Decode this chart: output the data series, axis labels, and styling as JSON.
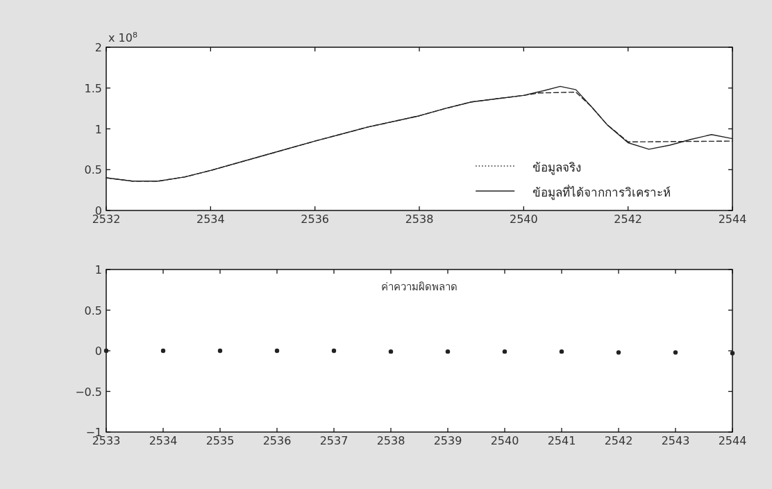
{
  "chart_data": [
    {
      "type": "line",
      "annotations": [
        "x 10$^{8}$"
      ],
      "legend": "bottom right",
      "xlim": [
        2532,
        2544
      ],
      "xticks": [
        2532,
        2534,
        2536,
        2538,
        2540,
        2542,
        2544
      ],
      "ylim": [
        0,
        2
      ],
      "yticks": [
        0,
        0.5,
        1,
        1.5,
        2
      ],
      "series": [
        {
          "name": "ข้อมูลจริง",
          "color": "#222222",
          "line_style": "dashed",
          "x": [
            2532,
            2532.5,
            2533,
            2533.5,
            2534,
            2535,
            2536,
            2537,
            2538,
            2538.5,
            2539,
            2539.5,
            2540,
            2540.3,
            2541,
            2541.3,
            2541.6,
            2542,
            2544
          ],
          "values": [
            0.4,
            0.36,
            0.36,
            0.41,
            0.49,
            0.67,
            0.85,
            1.02,
            1.16,
            1.25,
            1.33,
            1.37,
            1.41,
            1.44,
            1.45,
            1.27,
            1.05,
            0.84,
            0.85
          ]
        },
        {
          "name": "ข้อมูลที่ได้จากการวิเคราะห์",
          "color": "#222222",
          "line_style": "solid",
          "x": [
            2532,
            2532.5,
            2533,
            2533.5,
            2534,
            2535,
            2536,
            2537,
            2538,
            2538.5,
            2539,
            2539.5,
            2540,
            2540.4,
            2540.7,
            2541,
            2541.3,
            2541.6,
            2542,
            2542.4,
            2542.8,
            2543.2,
            2543.6,
            2544
          ],
          "values": [
            0.4,
            0.36,
            0.36,
            0.41,
            0.49,
            0.67,
            0.85,
            1.02,
            1.16,
            1.25,
            1.33,
            1.37,
            1.41,
            1.47,
            1.52,
            1.48,
            1.27,
            1.05,
            0.83,
            0.75,
            0.8,
            0.87,
            0.93,
            0.88
          ]
        }
      ]
    },
    {
      "type": "scatter",
      "annotations": [
        "ค่าความผิดพลาด"
      ],
      "marker": "circle",
      "xlim": [
        2533,
        2544
      ],
      "xticks": [
        2533,
        2534,
        2535,
        2536,
        2537,
        2538,
        2539,
        2540,
        2541,
        2542,
        2543,
        2544
      ],
      "ylim": [
        -1,
        1
      ],
      "yticks": [
        -1,
        -0.5,
        0,
        0.5,
        1
      ],
      "series": [
        {
          "color": "#222222",
          "x": [
            2533,
            2534,
            2535,
            2536,
            2537,
            2538,
            2539,
            2540,
            2541,
            2542,
            2543,
            2544
          ],
          "values": [
            0,
            0,
            0,
            0,
            0,
            -0.01,
            -0.01,
            -0.01,
            -0.01,
            -0.02,
            -0.02,
            -0.03
          ]
        }
      ]
    }
  ]
}
